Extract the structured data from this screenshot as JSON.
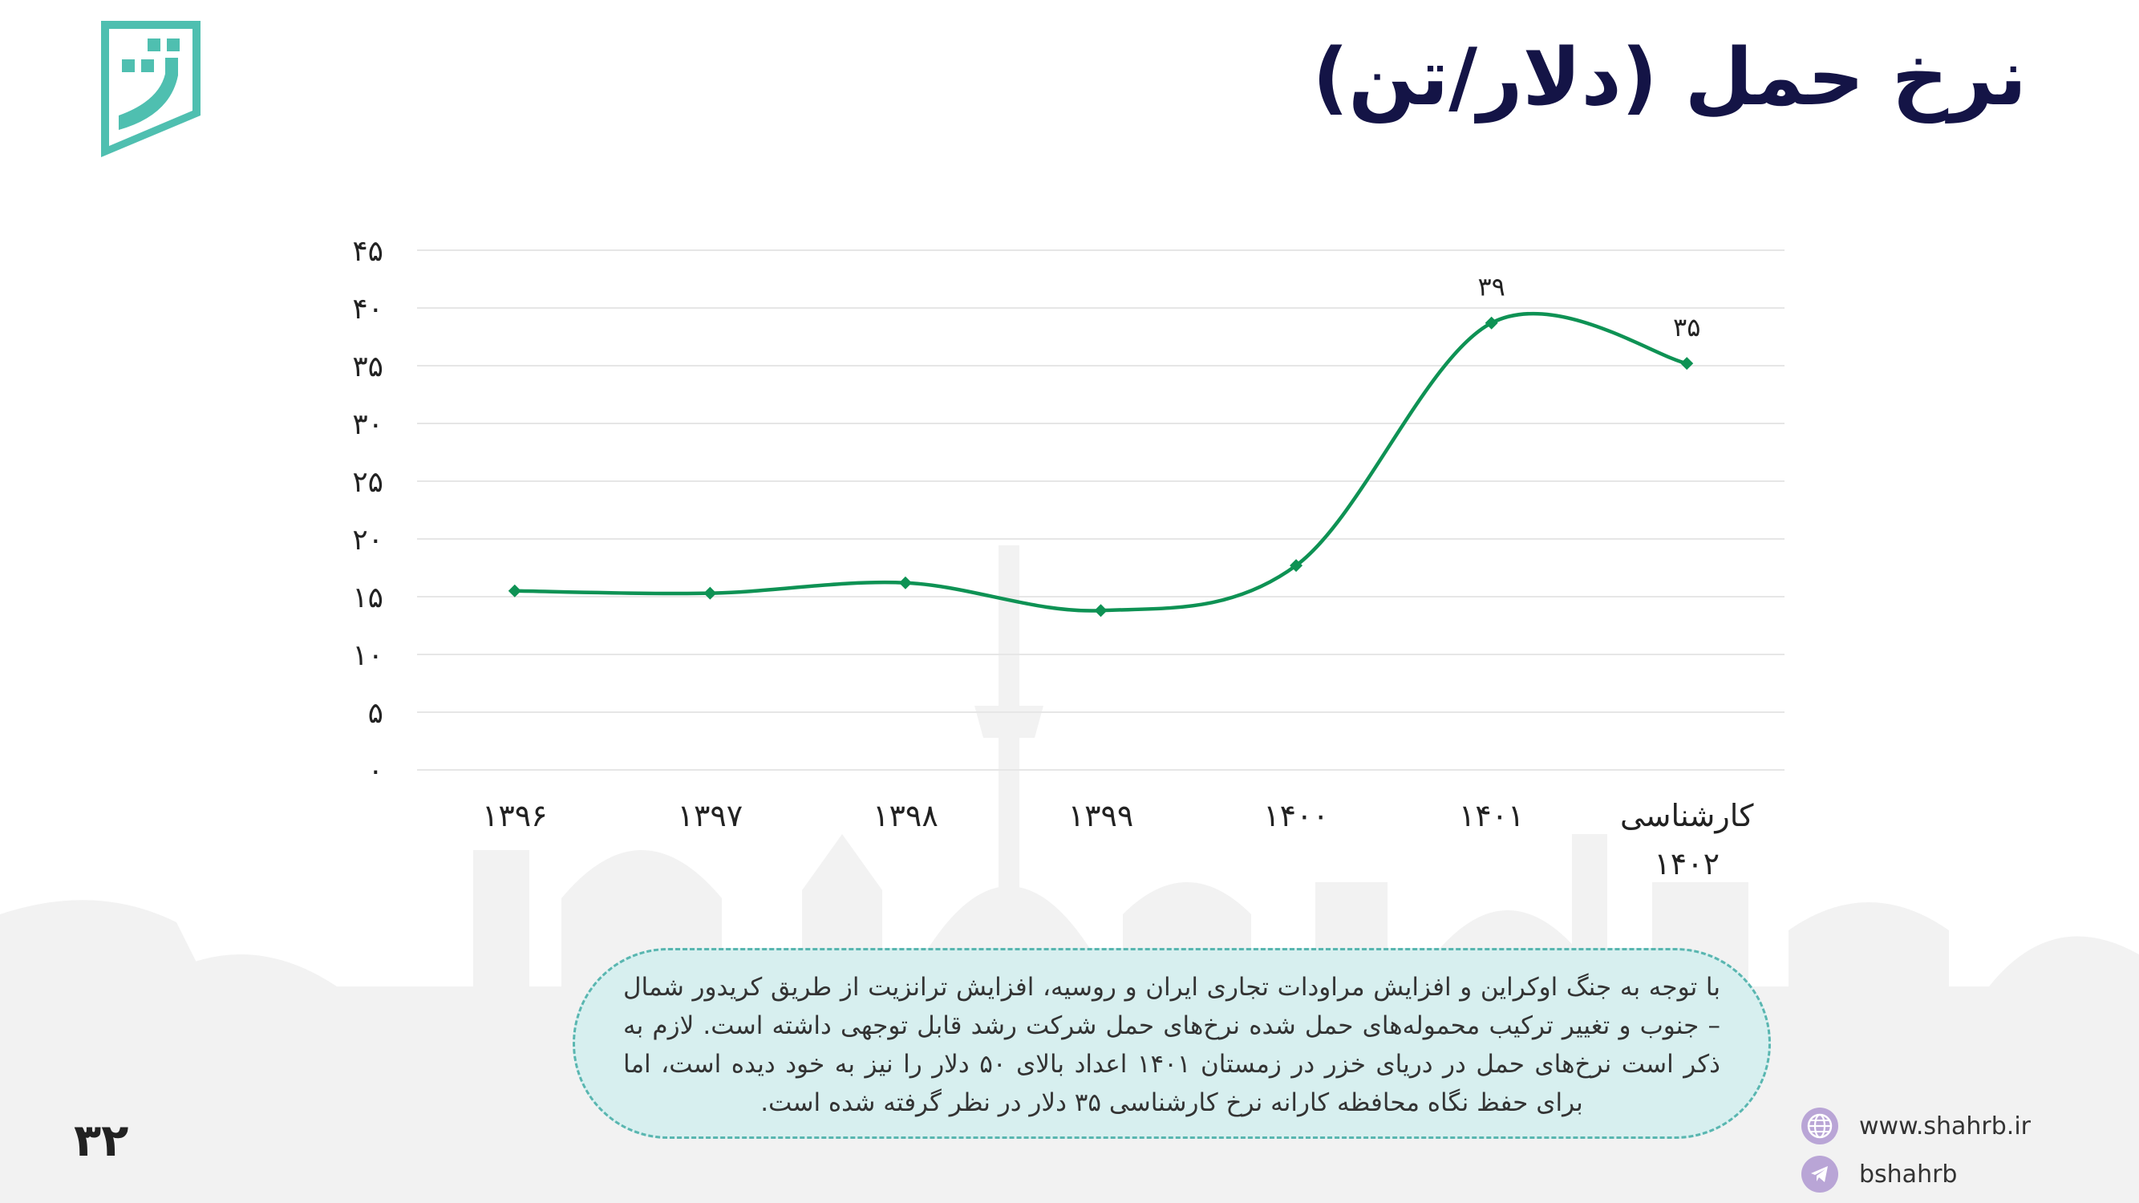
{
  "header": {
    "title": "نرخ حمل (دلار/تن)"
  },
  "colors": {
    "line": "#0e9254",
    "title": "#141446",
    "logo": "#4fbfb0",
    "note_bg": "#d7efef",
    "note_border": "#59b6b0",
    "social_icon": "#b9a5d6"
  },
  "icons": {
    "logo": "shahrb-logo",
    "web": "globe-icon",
    "telegram": "telegram-icon"
  },
  "chart_data": {
    "type": "line",
    "categories": [
      "۱۳۹۶",
      "۱۳۹۷",
      "۱۳۹۸",
      "۱۳۹۹",
      "۱۴۰۰",
      "۱۴۰۱",
      "کارشناسی ۱۴۰۲"
    ],
    "series": [
      {
        "values": [
          15.5,
          15.3,
          16.2,
          13.8,
          17.7,
          38.7,
          35.2
        ]
      }
    ],
    "data_labels": [
      "",
      "",
      "",
      "",
      "",
      "۳۹",
      "۳۵"
    ],
    "y_ticks": [
      0,
      5,
      10,
      15,
      20,
      25,
      30,
      35,
      40,
      45
    ],
    "y_tick_labels": [
      "۰",
      "۵",
      "۱۰",
      "۱۵",
      "۲۰",
      "۲۵",
      "۳۰",
      "۳۵",
      "۴۰",
      "۴۵"
    ],
    "ylim": [
      0,
      45
    ],
    "grid": true,
    "legend": "none"
  },
  "note": {
    "text": "با توجه به جنگ اوکراین و افزایش مراودات تجاری ایران و روسیه، افزایش ترانزیت از طریق کریدور شمال – جنوب و تغییر ترکیب محموله‌های حمل شده نرخ‌های حمل شرکت رشد قابل توجهی داشته است. لازم به ذکر است نرخ‌های حمل در دریای خزر در زمستان ۱۴۰۱ اعداد بالای ۵۰ دلار را نیز به خود دیده است، اما برای حفظ نگاه محافظه کارانه نرخ کارشناسی ۳۵ دلار در نظر گرفته شده است."
  },
  "footer": {
    "page_number": "۳۲",
    "website": "www.shahrb.ir",
    "telegram": "bshahrb"
  }
}
